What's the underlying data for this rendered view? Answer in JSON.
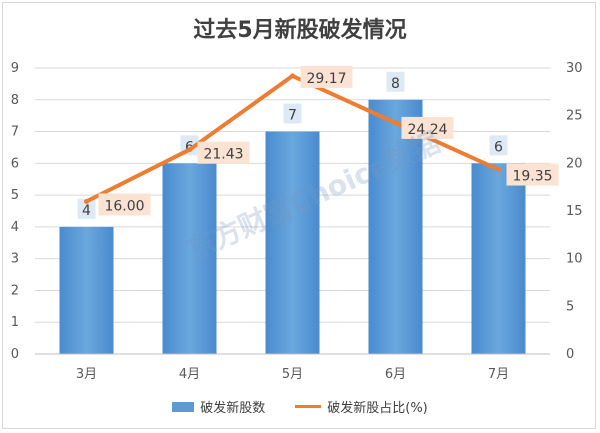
{
  "chart_data": {
    "type": "bar",
    "title": "过去5月新股破发情况",
    "categories": [
      "3月",
      "4月",
      "5月",
      "6月",
      "7月"
    ],
    "series": [
      {
        "name": "破发新股数",
        "type": "bar",
        "axis": "left",
        "values": [
          4,
          6,
          7,
          8,
          6
        ],
        "color": "#5b9bd5"
      },
      {
        "name": "破发新股占比(%)",
        "type": "line",
        "axis": "right",
        "values": [
          16.0,
          21.43,
          29.17,
          24.24,
          19.35
        ],
        "color": "#ed7d31"
      }
    ],
    "bar_labels": [
      "4",
      "6",
      "7",
      "8",
      "6"
    ],
    "line_labels": [
      "16.00",
      "21.43",
      "29.17",
      "24.24",
      "19.35"
    ],
    "y_left": {
      "min": 0,
      "max": 9,
      "ticks": [
        "0",
        "1",
        "2",
        "3",
        "4",
        "5",
        "6",
        "7",
        "8",
        "9"
      ]
    },
    "y_right": {
      "min": 0,
      "max": 30,
      "ticks": [
        "0",
        "5",
        "10",
        "15",
        "20",
        "25",
        "30"
      ]
    },
    "grid": true,
    "legend_position": "bottom"
  },
  "watermark": "东方财富Choice数据"
}
